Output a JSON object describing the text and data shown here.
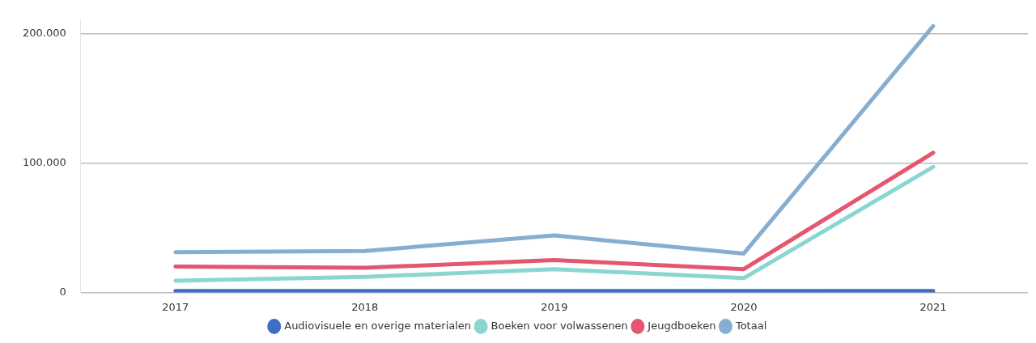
{
  "chart_data": {
    "type": "line",
    "categories": [
      "2017",
      "2018",
      "2019",
      "2020",
      "2021"
    ],
    "series": [
      {
        "name": "Audiovisuele en overige materialen",
        "color": "#3c6fc3",
        "values": [
          1000,
          1000,
          1000,
          1000,
          1000
        ]
      },
      {
        "name": "Boeken voor volwassenen",
        "color": "#8ad6d0",
        "values": [
          9000,
          12000,
          18000,
          11000,
          97000
        ]
      },
      {
        "name": "Jeugdboeken",
        "color": "#e5566f",
        "values": [
          20000,
          19000,
          25000,
          18000,
          108000
        ]
      },
      {
        "name": "Totaal",
        "color": "#86aed1",
        "values": [
          31000,
          32000,
          44000,
          30000,
          206000
        ]
      }
    ],
    "ylim": [
      0,
      210000
    ],
    "yticks": [
      {
        "value": 0,
        "label": "0"
      },
      {
        "value": 100000,
        "label": "100.000"
      },
      {
        "value": 200000,
        "label": "200.000"
      }
    ],
    "grid": "y",
    "legend": "bottom",
    "marker": "none",
    "line_style": "solid"
  }
}
